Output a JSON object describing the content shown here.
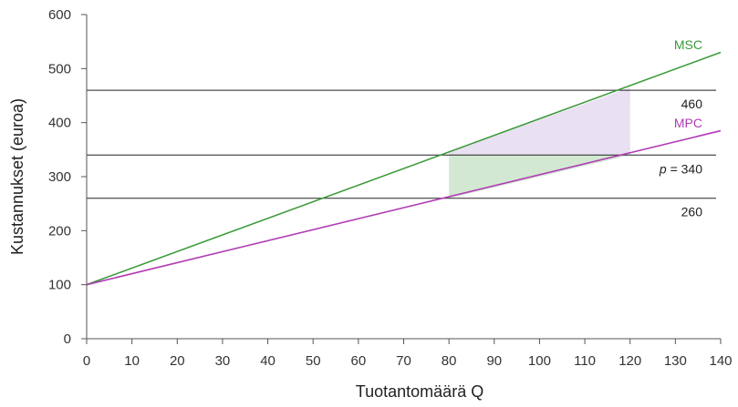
{
  "chart_data": {
    "type": "line",
    "xlabel": "Tuotantomäärä Q",
    "ylabel": "Kustannukset (euroa)",
    "xlim": [
      0,
      140
    ],
    "ylim": [
      0,
      600
    ],
    "xticks": [
      0,
      10,
      20,
      30,
      40,
      50,
      60,
      70,
      80,
      90,
      100,
      110,
      120,
      130,
      140
    ],
    "yticks": [
      0,
      100,
      200,
      300,
      400,
      500,
      600
    ],
    "grid": false,
    "series": [
      {
        "name": "MSC",
        "color": "#3a9a3a",
        "x": [
          0,
          140
        ],
        "y": [
          100,
          530
        ]
      },
      {
        "name": "MPC",
        "color": "#b13cb5",
        "x": [
          0,
          140
        ],
        "y": [
          100,
          385
        ]
      }
    ],
    "reference_lines": [
      {
        "y": 460,
        "label": "460"
      },
      {
        "y": 340,
        "label": "= 340",
        "label_prefix": "p"
      },
      {
        "y": 260,
        "label": "260"
      }
    ],
    "shaded_regions": [
      {
        "color": "#e9e0f1",
        "points": [
          [
            80,
            340
          ],
          [
            120,
            340
          ],
          [
            120,
            465
          ],
          [
            80,
            345
          ]
        ]
      },
      {
        "color": "#d2e8d2",
        "points": [
          [
            80,
            260
          ],
          [
            80,
            340
          ],
          [
            120,
            340
          ]
        ]
      }
    ]
  }
}
